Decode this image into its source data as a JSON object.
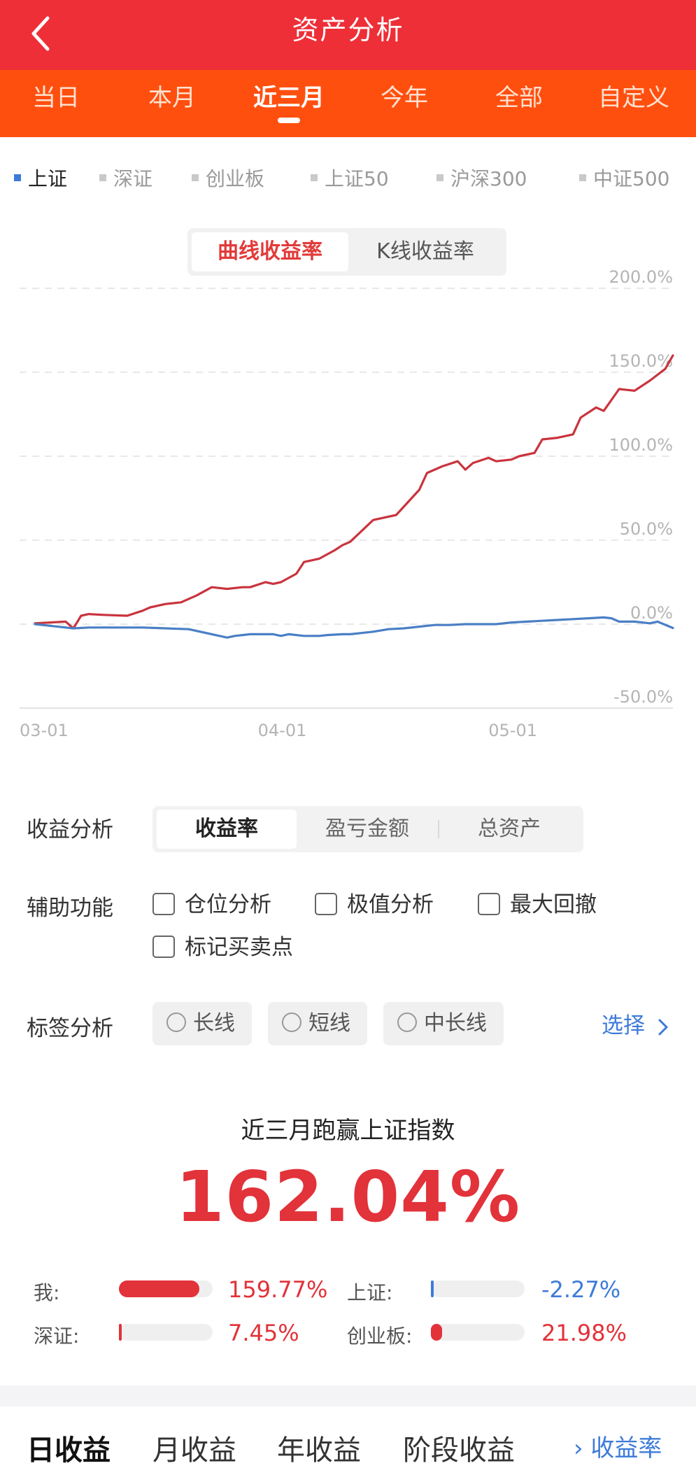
{
  "header": {
    "title": "资产分析",
    "back_icon": "chevron-left-icon"
  },
  "period_tabs": [
    {
      "label": "当日",
      "active": false
    },
    {
      "label": "本月",
      "active": false
    },
    {
      "label": "近三月",
      "active": true
    },
    {
      "label": "今年",
      "active": false
    },
    {
      "label": "全部",
      "active": false
    },
    {
      "label": "自定义",
      "active": false
    }
  ],
  "index_legend": [
    {
      "label": "上证",
      "active": true
    },
    {
      "label": "深证",
      "active": false
    },
    {
      "label": "创业板",
      "active": false
    },
    {
      "label": "上证50",
      "active": false
    },
    {
      "label": "沪深300",
      "active": false
    },
    {
      "label": "中证500",
      "active": false
    }
  ],
  "chart_mode": {
    "options": [
      "曲线收益率",
      "K线收益率"
    ],
    "selected": "曲线收益率"
  },
  "chart_data": {
    "type": "line",
    "title": "",
    "xlabel": "",
    "ylabel": "",
    "x_ticks": [
      "03-01",
      "04-01",
      "05-01"
    ],
    "y_ticks": [
      "200.0%",
      "150.0%",
      "100.0%",
      "50.0%",
      "0.0%",
      "-50.0%"
    ],
    "ylim": [
      -50,
      200
    ],
    "xlim": [
      0,
      85
    ],
    "x_tick_positions": [
      0,
      31,
      61
    ],
    "grid": true,
    "series": [
      {
        "key": "mine",
        "color": "#c9343e",
        "x": [
          2,
          6,
          7,
          8,
          9,
          11,
          14,
          16,
          17,
          19,
          21,
          23,
          25,
          27,
          29,
          30,
          32,
          33,
          34,
          36,
          37,
          39,
          41,
          42,
          43,
          46,
          49,
          50,
          52,
          53,
          55,
          57,
          58,
          59,
          61,
          62,
          64,
          65,
          67,
          68,
          70,
          71,
          72,
          73,
          75,
          76,
          78,
          80,
          82,
          84,
          85
        ],
        "y": [
          0.5,
          1.5,
          -2.5,
          5,
          6,
          5.5,
          5,
          8,
          10,
          12,
          13,
          17,
          22,
          21,
          22,
          22,
          25,
          24,
          25,
          30,
          37,
          39,
          44,
          47,
          49,
          62,
          65,
          70,
          80,
          90,
          94,
          97,
          92,
          96,
          99,
          97,
          98,
          100,
          102,
          110,
          111,
          112,
          113,
          123,
          129,
          127,
          140,
          139,
          145,
          152,
          160
        ]
      },
      {
        "key": "shanghai",
        "color": "#4a7fc5",
        "x": [
          2,
          6,
          7,
          9,
          11,
          14,
          16,
          19,
          22,
          24,
          26,
          27,
          28,
          29,
          30,
          33,
          34,
          35,
          37,
          39,
          40,
          42,
          43,
          46,
          48,
          50,
          52,
          54,
          56,
          58,
          60,
          62,
          64,
          66,
          68,
          70,
          72,
          74,
          76,
          77,
          78,
          80,
          82,
          83,
          85
        ],
        "y": [
          0,
          -2,
          -2.5,
          -2,
          -2,
          -2,
          -2,
          -2.5,
          -3,
          -5,
          -7,
          -8,
          -7,
          -6.5,
          -6,
          -6,
          -7,
          -6,
          -7,
          -7,
          -6.5,
          -6,
          -6,
          -4.5,
          -3,
          -2.5,
          -1.5,
          -0.5,
          -0.5,
          0,
          0,
          0,
          1,
          1.5,
          2,
          2.5,
          3,
          3.5,
          4,
          3.5,
          1.5,
          1.5,
          0.5,
          1.5,
          -2.3
        ]
      }
    ]
  },
  "profit_analysis": {
    "label": "收益分析",
    "options": [
      "收益率",
      "盈亏金额",
      "总资产"
    ],
    "selected": "收益率"
  },
  "aux_functions": {
    "label": "辅助功能",
    "items": [
      "仓位分析",
      "极值分析",
      "最大回撤",
      "标记买卖点"
    ]
  },
  "tag_analysis": {
    "label": "标签分析",
    "options": [
      "长线",
      "短线",
      "中长线"
    ],
    "select_label": "选择"
  },
  "summary": {
    "title": "近三月跑赢上证指数",
    "value": "162.04%",
    "comparisons": [
      {
        "label": "我:",
        "value": "159.77%",
        "fill": 0.86,
        "color": "#e2323a"
      },
      {
        "label": "上证:",
        "value": "-2.27%",
        "fill": 0.02,
        "color": "#3d7bd9"
      },
      {
        "label": "深证:",
        "value": "7.45%",
        "fill": 0.03,
        "color": "#e2323a"
      },
      {
        "label": "创业板:",
        "value": "21.98%",
        "fill": 0.12,
        "color": "#e2323a"
      }
    ]
  },
  "bottom_tabs": [
    {
      "label": "日收益",
      "active": true
    },
    {
      "label": "月收益",
      "active": false
    },
    {
      "label": "年收益",
      "active": false
    },
    {
      "label": "阶段收益",
      "active": false
    }
  ],
  "bottom_link": "收益率",
  "colors": {
    "header": "#ee2f37",
    "tabs": "#ff4f0f",
    "accent_red": "#e2323a",
    "accent_blue": "#3d7bd9"
  }
}
